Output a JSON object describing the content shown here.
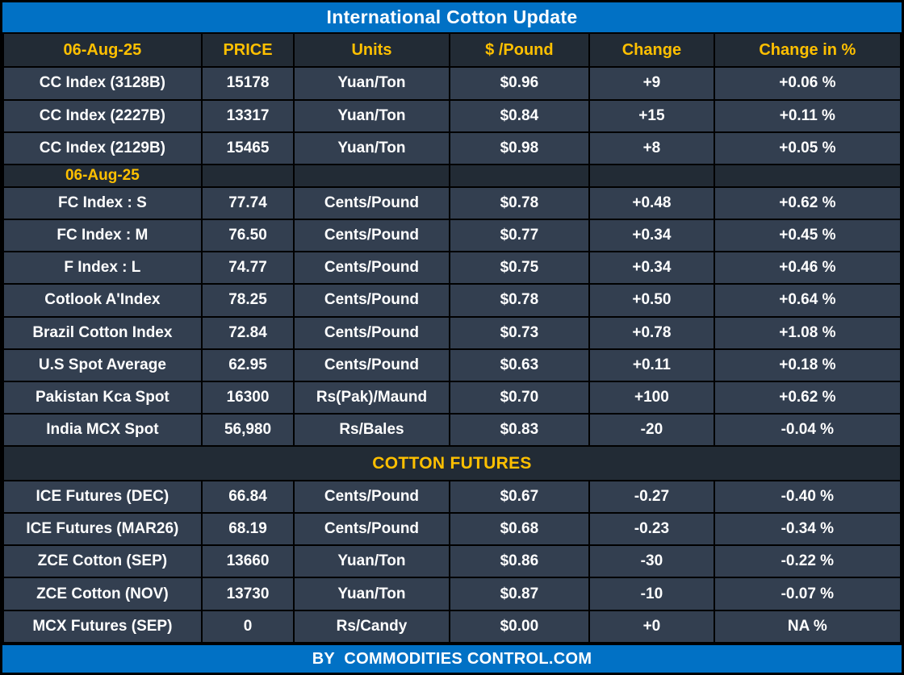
{
  "title": "International Cotton Update",
  "footer": "BY  COMMODITIES CONTROL.COM",
  "colors": {
    "accent_blue": "#0171C5",
    "gold": "#FFC000",
    "band_dark": "#222B35",
    "row_slate": "#333F50",
    "grid_black": "#000000",
    "text_white": "#FFFFFF"
  },
  "chart_data": {
    "type": "table",
    "title": "International Cotton Update",
    "columns": [
      "06-Aug-25",
      "PRICE",
      "Units",
      "$ /Pound",
      "Change",
      "Change in %"
    ],
    "column_widths_pct": [
      22.1,
      10.3,
      17.3,
      15.6,
      13.9,
      20.8
    ],
    "rows": [
      {
        "type": "data",
        "cells": [
          "CC Index (3128B)",
          "15178",
          "Yuan/Ton",
          "$0.96",
          "+9",
          "+0.06 %"
        ]
      },
      {
        "type": "data",
        "cells": [
          "CC Index (2227B)",
          "13317",
          "Yuan/Ton",
          "$0.84",
          "+15",
          "+0.11 %"
        ]
      },
      {
        "type": "data",
        "cells": [
          "CC Index (2129B)",
          "15465",
          "Yuan/Ton",
          "$0.98",
          "+8",
          "+0.05 %"
        ]
      },
      {
        "type": "section",
        "label": "06-Aug-25"
      },
      {
        "type": "data",
        "cells": [
          "FC Index : S",
          "77.74",
          "Cents/Pound",
          "$0.78",
          "+0.48",
          "+0.62 %"
        ]
      },
      {
        "type": "data",
        "cells": [
          "FC Index : M",
          "76.50",
          "Cents/Pound",
          "$0.77",
          "+0.34",
          "+0.45 %"
        ]
      },
      {
        "type": "data",
        "cells": [
          "F Index : L",
          "74.77",
          "Cents/Pound",
          "$0.75",
          "+0.34",
          "+0.46 %"
        ]
      },
      {
        "type": "data",
        "cells": [
          "Cotlook A'Index",
          "78.25",
          "Cents/Pound",
          "$0.78",
          "+0.50",
          "+0.64 %"
        ]
      },
      {
        "type": "data",
        "cells": [
          "Brazil Cotton Index",
          "72.84",
          "Cents/Pound",
          "$0.73",
          "+0.78",
          "+1.08 %"
        ]
      },
      {
        "type": "data",
        "cells": [
          "U.S Spot Average",
          "62.95",
          "Cents/Pound",
          "$0.63",
          "+0.11",
          "+0.18 %"
        ]
      },
      {
        "type": "data",
        "cells": [
          "Pakistan Kca Spot",
          "16300",
          "Rs(Pak)/Maund",
          "$0.70",
          "+100",
          "+0.62 %"
        ]
      },
      {
        "type": "data",
        "cells": [
          "India MCX Spot",
          "56,980",
          "Rs/Bales",
          "$0.83",
          "-20",
          "-0.04 %"
        ]
      },
      {
        "type": "banner",
        "label": "COTTON FUTURES"
      },
      {
        "type": "data",
        "cells": [
          "ICE Futures (DEC)",
          "66.84",
          "Cents/Pound",
          "$0.67",
          "-0.27",
          "-0.40 %"
        ]
      },
      {
        "type": "data",
        "cells": [
          "ICE Futures (MAR26)",
          "68.19",
          "Cents/Pound",
          "$0.68",
          "-0.23",
          "-0.34 %"
        ]
      },
      {
        "type": "data",
        "cells": [
          "ZCE Cotton (SEP)",
          "13660",
          "Yuan/Ton",
          "$0.86",
          "-30",
          "-0.22 %"
        ]
      },
      {
        "type": "data",
        "cells": [
          "ZCE Cotton (NOV)",
          "13730",
          "Yuan/Ton",
          "$0.87",
          "-10",
          "-0.07 %"
        ]
      },
      {
        "type": "data",
        "cells": [
          "MCX Futures (SEP)",
          "0",
          "Rs/Candy",
          "$0.00",
          "+0",
          "NA %"
        ]
      }
    ]
  }
}
